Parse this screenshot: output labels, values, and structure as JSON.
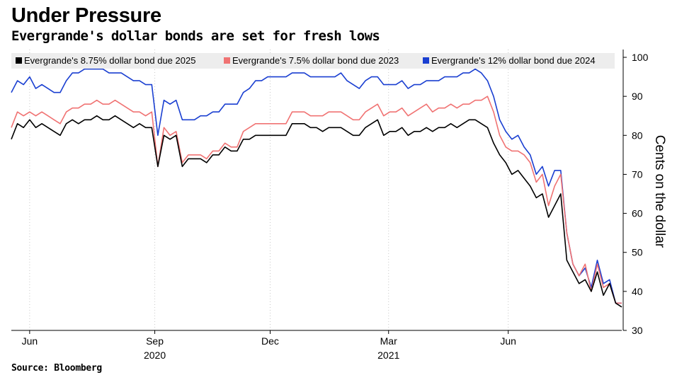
{
  "header": {
    "title": "Under Pressure",
    "subtitle": "Evergrande's dollar bonds are set for fresh lows"
  },
  "footer": {
    "source": "Source: Bloomberg"
  },
  "chart_data": {
    "type": "line",
    "ylabel": "Cents on the dollar",
    "ylim": [
      30,
      102
    ],
    "yticks": [
      30,
      40,
      50,
      60,
      70,
      80,
      90,
      100
    ],
    "grid": "vertical",
    "legend_position": "top-left",
    "x_domain": [
      0,
      100
    ],
    "x_ticks": [
      {
        "x": 3.0,
        "label": "Jun",
        "sub": ""
      },
      {
        "x": 23.5,
        "label": "Sep",
        "sub": "2020"
      },
      {
        "x": 42.4,
        "label": "Dec",
        "sub": ""
      },
      {
        "x": 61.8,
        "label": "Mar",
        "sub": "2021"
      },
      {
        "x": 81.4,
        "label": "Jun",
        "sub": ""
      }
    ],
    "colors": {
      "s2025": "#000000",
      "s2023": "#f07373",
      "s2024": "#1a3fd1"
    },
    "x": [
      0,
      1,
      2,
      3,
      4,
      5,
      6,
      7,
      8,
      9,
      10,
      11,
      12,
      13,
      14,
      15,
      16,
      17,
      18,
      19,
      20,
      21,
      22,
      23,
      24,
      25,
      26,
      27,
      28,
      29,
      30,
      31,
      32,
      33,
      34,
      35,
      36,
      37,
      38,
      39,
      40,
      41,
      42,
      43,
      44,
      45,
      46,
      47,
      48,
      49,
      50,
      51,
      52,
      53,
      54,
      55,
      56,
      57,
      58,
      59,
      60,
      61,
      62,
      63,
      64,
      65,
      66,
      67,
      68,
      69,
      70,
      71,
      72,
      73,
      74,
      75,
      76,
      77,
      78,
      79,
      80,
      81,
      82,
      83,
      84,
      85,
      86,
      87,
      88,
      89,
      90,
      91,
      92,
      93,
      94,
      95,
      96,
      97,
      98,
      99,
      100
    ],
    "series": [
      {
        "name": "Evergrande's 8.75% dollar bond due 2025",
        "color_key": "s2025",
        "values": [
          79,
          83,
          82,
          84,
          82,
          83,
          82,
          81,
          80,
          83,
          84,
          83,
          84,
          84,
          85,
          84,
          84,
          85,
          84,
          83,
          82,
          83,
          82,
          82,
          72,
          80,
          79,
          80,
          72,
          74,
          74,
          74,
          73,
          75,
          75,
          77,
          76,
          76,
          79,
          79,
          80,
          80,
          80,
          80,
          80,
          80,
          83,
          83,
          83,
          82,
          82,
          81,
          82,
          82,
          82,
          81,
          80,
          80,
          82,
          83,
          84,
          80,
          81,
          81,
          82,
          80,
          81,
          81,
          82,
          81,
          82,
          82,
          83,
          82,
          83,
          84,
          84,
          83,
          82,
          78,
          75,
          73,
          70,
          71,
          69,
          67,
          64,
          65,
          59,
          62,
          65,
          48,
          45,
          42,
          43,
          40,
          45,
          39,
          42,
          37,
          36
        ]
      },
      {
        "name": "Evergrande's 7.5% dollar bond due 2023",
        "color_key": "s2023",
        "values": [
          82,
          86,
          85,
          86,
          85,
          86,
          85,
          84,
          83,
          86,
          87,
          87,
          88,
          88,
          89,
          88,
          88,
          89,
          88,
          87,
          86,
          86,
          85,
          86,
          72,
          82,
          80,
          81,
          73,
          75,
          75,
          75,
          74,
          76,
          76,
          78,
          77,
          77,
          81,
          82,
          83,
          83,
          83,
          83,
          83,
          83,
          86,
          86,
          86,
          85,
          85,
          85,
          86,
          86,
          86,
          85,
          84,
          84,
          86,
          87,
          88,
          85,
          86,
          86,
          87,
          85,
          86,
          87,
          88,
          86,
          87,
          87,
          88,
          87,
          88,
          88,
          89,
          89,
          90,
          86,
          80,
          77,
          76,
          76,
          75,
          73,
          68,
          70,
          62,
          67,
          70,
          55,
          47,
          44,
          47,
          40,
          47,
          41,
          42,
          37,
          37
        ]
      },
      {
        "name": "Evergrande's 12% dollar bond due 2024",
        "color_key": "s2024",
        "values": [
          91,
          94,
          93,
          95,
          92,
          93,
          92,
          91,
          91,
          94,
          96,
          96,
          97,
          97,
          97,
          97,
          96,
          96,
          96,
          95,
          94,
          94,
          93,
          93,
          80,
          89,
          88,
          89,
          84,
          84,
          84,
          85,
          85,
          86,
          86,
          88,
          88,
          88,
          91,
          92,
          94,
          94,
          95,
          95,
          95,
          95,
          96,
          96,
          96,
          95,
          95,
          95,
          95,
          95,
          96,
          94,
          93,
          92,
          94,
          95,
          95,
          93,
          93,
          93,
          94,
          92,
          93,
          93,
          94,
          94,
          94,
          95,
          95,
          95,
          96,
          96,
          97,
          96,
          94,
          90,
          84,
          81,
          79,
          80,
          77,
          75,
          70,
          72,
          67,
          71,
          71,
          55,
          47,
          44,
          46,
          41,
          48,
          42,
          43,
          37,
          37
        ]
      }
    ]
  }
}
